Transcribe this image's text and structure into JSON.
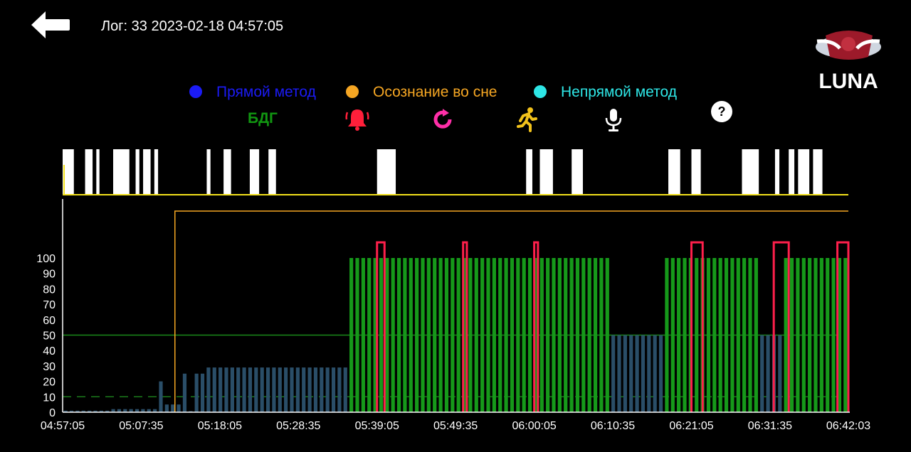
{
  "header": {
    "title": "Лог: 33 2023-02-18 04:57:05",
    "app_name": "LUNA"
  },
  "legend": {
    "items": [
      {
        "label": "Прямой метод",
        "color": "#1b1bf5"
      },
      {
        "label": "Осознание во сне",
        "color": "#f5a623"
      },
      {
        "label": "Непрямой метод",
        "color": "#2ee6e6"
      }
    ],
    "rem_label": "БДГ",
    "rem_color": "#119611",
    "icons": [
      "alarm-icon",
      "repeat-icon",
      "running-person-icon",
      "microphone-icon",
      "help-icon"
    ]
  },
  "chart_data": {
    "type": "bar",
    "xlabel": "",
    "ylabel": "",
    "ylim": [
      0,
      100
    ],
    "y_ticks": [
      "0",
      "10",
      "20",
      "30",
      "40",
      "50",
      "60",
      "70",
      "80",
      "90",
      "100"
    ],
    "x_ticks": [
      "04:57:05",
      "05:07:35",
      "05:18:05",
      "05:28:35",
      "05:39:05",
      "05:49:35",
      "06:00:05",
      "06:10:35",
      "06:21:05",
      "06:31:35",
      "06:42:03"
    ],
    "x_start": "04:57:05",
    "x_end": "06:42:03",
    "threshold_solid": 50,
    "threshold_dashed": 10,
    "lucid_marker_time": "05:12:05",
    "values": [
      1,
      1,
      1,
      1,
      1,
      1,
      1,
      1,
      2,
      2,
      2,
      2,
      2,
      2,
      2,
      2,
      20,
      5,
      5,
      5,
      25,
      0,
      25,
      25,
      29,
      29,
      29,
      29,
      29,
      29,
      29,
      29,
      29,
      29,
      29,
      29,
      29,
      29,
      29,
      29,
      29,
      29,
      29,
      29,
      29,
      29,
      29,
      29,
      100,
      100,
      100,
      100,
      100,
      100,
      100,
      100,
      100,
      100,
      100,
      100,
      100,
      100,
      100,
      100,
      100,
      100,
      100,
      100,
      100,
      100,
      100,
      100,
      100,
      100,
      100,
      100,
      100,
      100,
      100,
      100,
      100,
      100,
      100,
      100,
      100,
      100,
      100,
      100,
      100,
      100,
      100,
      100,
      50,
      50,
      50,
      50,
      50,
      50,
      50,
      50,
      50,
      100,
      100,
      100,
      100,
      100,
      100,
      100,
      100,
      100,
      100,
      100,
      100,
      100,
      100,
      100,
      100,
      50,
      50,
      50,
      50,
      100,
      100,
      100,
      100,
      100,
      100,
      100,
      100,
      100,
      100,
      100
    ],
    "rem_start_index": 48,
    "rem_end_index": 126,
    "red_spikes": [
      {
        "start": "05:39:05",
        "end": "05:40:05"
      },
      {
        "start": "05:50:35",
        "end": "05:51:05"
      },
      {
        "start": "06:00:05",
        "end": "06:00:35"
      },
      {
        "start": "06:21:05",
        "end": "06:22:35"
      },
      {
        "start": "06:32:05",
        "end": "06:34:05"
      },
      {
        "start": "06:40:35",
        "end": "06:42:03"
      }
    ],
    "white_bars": [
      [
        "04:57:05",
        "04:58:35"
      ],
      [
        "05:00:05",
        "05:01:05"
      ],
      [
        "05:01:35",
        "05:02:00"
      ],
      [
        "05:03:50",
        "05:06:00"
      ],
      [
        "05:06:50",
        "05:07:20"
      ],
      [
        "05:07:50",
        "05:08:50"
      ],
      [
        "05:09:20",
        "05:09:50"
      ],
      [
        "05:16:20",
        "05:16:50"
      ],
      [
        "05:18:35",
        "05:19:35"
      ],
      [
        "05:22:05",
        "05:23:20"
      ],
      [
        "05:24:35",
        "05:25:35"
      ],
      [
        "05:39:05",
        "05:41:35"
      ],
      [
        "05:59:00",
        "05:59:50"
      ],
      [
        "06:00:50",
        "06:02:35"
      ],
      [
        "06:05:05",
        "06:06:35"
      ],
      [
        "06:18:00",
        "06:19:35"
      ],
      [
        "06:21:05",
        "06:22:20"
      ],
      [
        "06:27:50",
        "06:30:05"
      ],
      [
        "06:32:15",
        "06:32:50"
      ],
      [
        "06:34:05",
        "06:34:50"
      ],
      [
        "06:35:20",
        "06:36:50"
      ],
      [
        "06:37:20",
        "06:38:35"
      ]
    ]
  }
}
